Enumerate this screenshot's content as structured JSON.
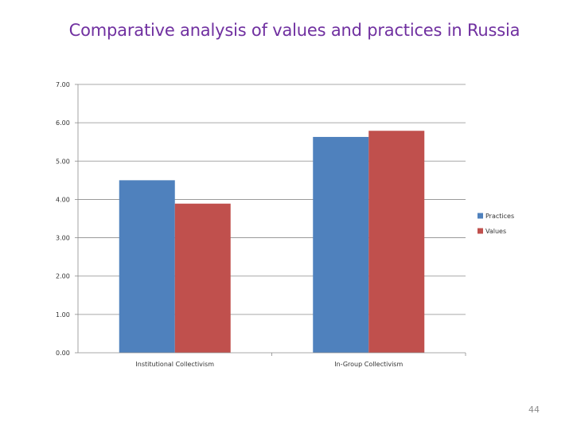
{
  "slide": {
    "title": "Comparative analysis of values and practices in Russia",
    "page_number": "44"
  },
  "chart_data": {
    "type": "bar",
    "title": "",
    "xlabel": "",
    "ylabel": "",
    "categories": [
      "Institutional Collectivism",
      "In-Group Collectivism"
    ],
    "series": [
      {
        "name": "Practices",
        "values": [
          4.5,
          5.63
        ],
        "color": "#4f81bd"
      },
      {
        "name": "Values",
        "values": [
          3.89,
          5.79
        ],
        "color": "#c0504d"
      }
    ],
    "ylim": [
      0,
      7
    ],
    "y_ticks": [
      "0.00",
      "1.00",
      "2.00",
      "3.00",
      "4.00",
      "5.00",
      "6.00",
      "7.00"
    ],
    "grid": true,
    "legend_position": "right"
  }
}
